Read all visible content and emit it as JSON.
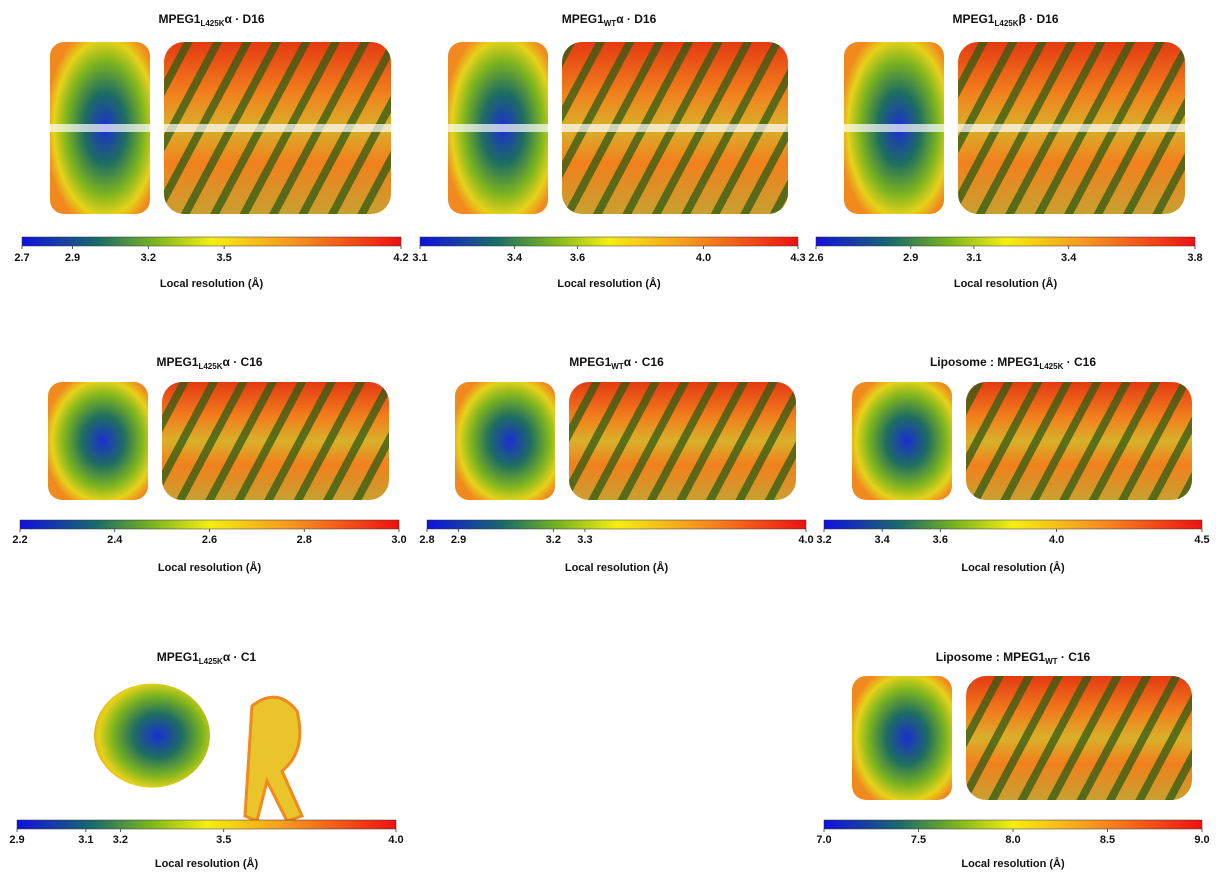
{
  "panels": [
    {
      "title": {
        "main": "MPEG1",
        "sub": "L425K",
        "suffix": "α · D16"
      },
      "colorbar": {
        "range": [
          2.7,
          4.2
        ],
        "ticks": [
          2.7,
          2.9,
          3.2,
          3.5,
          4.2
        ]
      },
      "label": "Local resolution (Å)"
    },
    {
      "title": {
        "main": "MPEG1",
        "sub": "WT",
        "suffix": "α · D16"
      },
      "colorbar": {
        "range": [
          3.1,
          4.3
        ],
        "ticks": [
          3.1,
          3.4,
          3.6,
          {
            "value": 4,
            "label": "4.0"
          },
          4.3
        ]
      },
      "label": "Local resolution (Å)"
    },
    {
      "title": {
        "main": "MPEG1",
        "sub": "L425K",
        "suffix": "β · D16"
      },
      "colorbar": {
        "range": [
          2.6,
          3.8
        ],
        "ticks": [
          2.6,
          2.9,
          3.1,
          3.4,
          3.8
        ]
      },
      "label": "Local resolution (Å)"
    },
    {
      "title": {
        "main": "MPEG1",
        "sub": "L425K",
        "suffix": "α · C16"
      },
      "colorbar": {
        "range": [
          2.2,
          3
        ],
        "ticks": [
          2.2,
          2.4,
          2.6,
          2.8,
          {
            "value": 3,
            "label": "3.0"
          }
        ]
      },
      "label": "Local resolution (Å)"
    },
    {
      "title": {
        "main": "MPEG1",
        "sub": "WT",
        "suffix": "α · C16"
      },
      "colorbar": {
        "range": [
          2.8,
          4
        ],
        "ticks": [
          2.8,
          2.9,
          3.2,
          3.3,
          {
            "value": 4,
            "label": "4.0"
          }
        ]
      },
      "label": "Local resolution (Å)"
    },
    {
      "title": {
        "main": "Liposome : MPEG1",
        "sub": "L425K",
        "suffix": " · C16"
      },
      "colorbar": {
        "range": [
          3.2,
          4.5
        ],
        "ticks": [
          3.2,
          3.4,
          3.6,
          {
            "value": 4,
            "label": "4.0"
          },
          4.5
        ]
      },
      "label": "Local resolution (Å)"
    },
    {
      "title": {
        "main": "MPEG1",
        "sub": "L425K",
        "suffix": "α · C1"
      },
      "colorbar": {
        "range": [
          2.9,
          4
        ],
        "ticks": [
          2.9,
          3.1,
          3.2,
          3.5,
          {
            "value": 4,
            "label": "4.0"
          }
        ]
      },
      "label": "Local resolution (Å)"
    },
    {
      "title": {
        "main": "Liposome : MPEG1",
        "sub": "WT",
        "suffix": " · C16"
      },
      "colorbar": {
        "range": [
          7,
          9
        ],
        "ticks": [
          {
            "value": 7,
            "label": "7.0"
          },
          7.5,
          {
            "value": 8,
            "label": "8.0"
          },
          8.5,
          {
            "value": 9,
            "label": "9.0"
          }
        ]
      },
      "label": "Local resolution (Å)"
    }
  ]
}
